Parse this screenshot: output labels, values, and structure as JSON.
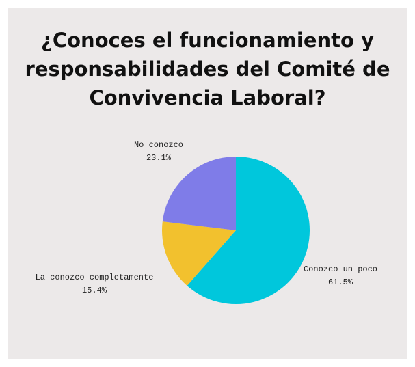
{
  "chart_data": {
    "type": "pie",
    "title_lines": [
      "¿Conoces el funcionamiento y",
      "responsabilidades del Comité de",
      "Convivencia Laboral?"
    ],
    "slices": [
      {
        "label": "Conozco un poco",
        "value": 61.5,
        "percent_label": "61.5%",
        "color": "#00c7dc"
      },
      {
        "label": "La conozco completamente",
        "value": 15.4,
        "percent_label": "15.4%",
        "color": "#f2c12e"
      },
      {
        "label": "No conozco",
        "value": 23.1,
        "percent_label": "23.1%",
        "color": "#7f7ce8"
      }
    ],
    "start_angle": "12 o'clock",
    "direction": "clockwise",
    "legend": "none",
    "background_color": "#ece9e9"
  }
}
